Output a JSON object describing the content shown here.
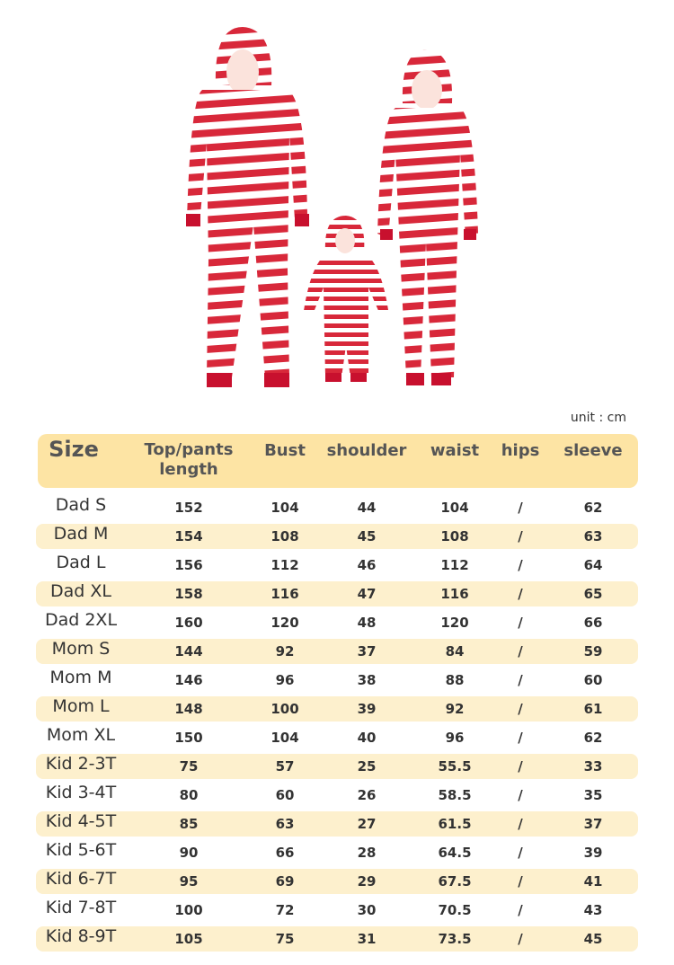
{
  "unit": "unit : cm",
  "table": {
    "header": [
      "Size",
      "Top/pants length",
      "Bust",
      "shoulder",
      "waist",
      "hips",
      "sleeve"
    ],
    "rows": [
      [
        "Dad S",
        152,
        104,
        44,
        104,
        "/",
        62
      ],
      [
        "Dad M",
        154,
        108,
        45,
        108,
        "/",
        63
      ],
      [
        "Dad L",
        156,
        112,
        46,
        112,
        "/",
        64
      ],
      [
        "Dad XL",
        158,
        116,
        47,
        116,
        "/",
        65
      ],
      [
        "Dad 2XL",
        160,
        120,
        48,
        120,
        "/",
        66
      ],
      [
        "Mom S",
        144,
        92,
        37,
        84,
        "/",
        59
      ],
      [
        "Mom M",
        146,
        96,
        38,
        88,
        "/",
        60
      ],
      [
        "Mom L",
        148,
        100,
        39,
        92,
        "/",
        61
      ],
      [
        "Mom XL",
        150,
        104,
        40,
        96,
        "/",
        62
      ],
      [
        "Kid 2-3T",
        75,
        57,
        25,
        55.5,
        "/",
        33
      ],
      [
        "Kid 3-4T",
        80,
        60,
        26,
        58.5,
        "/",
        35
      ],
      [
        "Kid 4-5T",
        85,
        63,
        27,
        61.5,
        "/",
        37
      ],
      [
        "Kid 5-6T",
        90,
        66,
        28,
        64.5,
        "/",
        39
      ],
      [
        "Kid 6-7T",
        95,
        69,
        29,
        67.5,
        "/",
        41
      ],
      [
        "Kid 7-8T",
        100,
        72,
        30,
        70.5,
        "/",
        43
      ],
      [
        "Kid 8-9T",
        105,
        75,
        31,
        73.5,
        "/",
        45
      ]
    ]
  }
}
